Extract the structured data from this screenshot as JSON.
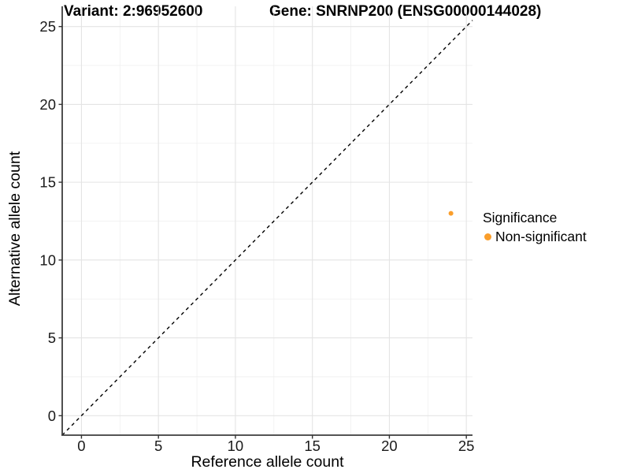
{
  "chart_data": {
    "type": "scatter",
    "title_left": "Variant: 2:96952600",
    "title_right": "Gene: SNRNP200 (ENSG00000144028)",
    "xlabel": "Reference allele count",
    "ylabel": "Alternative allele count",
    "xlim": [
      -1.25,
      25.4
    ],
    "ylim": [
      -1.25,
      26.3
    ],
    "x_ticks": [
      0,
      5,
      10,
      15,
      20,
      25
    ],
    "y_ticks": [
      0,
      5,
      10,
      15,
      20,
      25
    ],
    "x_minor_ticks": [
      2.5,
      7.5,
      12.5,
      17.5,
      22.5
    ],
    "y_minor_ticks": [
      2.5,
      7.5,
      12.5,
      17.5,
      22.5
    ],
    "grid": "major and minor, light grey on white",
    "reference_line": {
      "type": "identity y=x",
      "style": "dashed",
      "color": "#000000"
    },
    "series": [
      {
        "name": "Non-significant",
        "color": "#FA9E2B",
        "point_radius": 3,
        "points": [
          {
            "x": 24,
            "y": 13
          }
        ]
      }
    ],
    "legend": {
      "position": "right",
      "title": "Significance",
      "entries": [
        {
          "label": "Non-significant",
          "color": "#FA9E2B"
        }
      ]
    },
    "colors": {
      "grid_major": "#e4e4e4",
      "grid_minor": "#efefef",
      "axis_line": "#3c3c3c",
      "tick_mark": "#333333",
      "tick_label": "#1a1a1a",
      "reference_line": "#000000",
      "background": "#ffffff"
    }
  }
}
